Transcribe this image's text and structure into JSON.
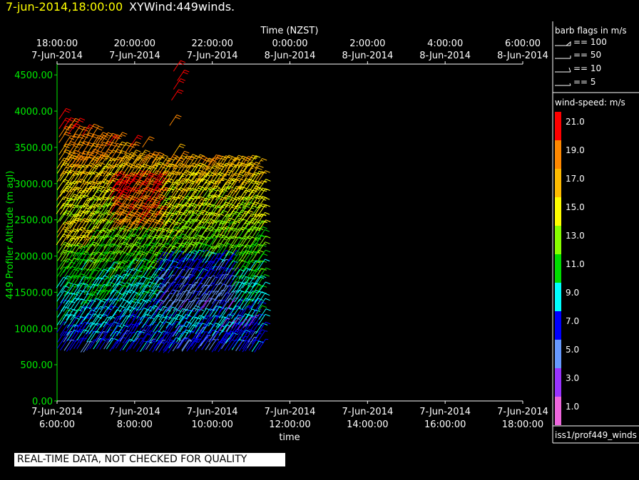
{
  "header": {
    "timestamp": "7-jun-2014,18:00:00",
    "title": "XYWind:449winds."
  },
  "banner": "REAL-TIME DATA, NOT CHECKED FOR QUALITY",
  "legend": {
    "barb_title": "barb flags in m/s",
    "barb_entries": [
      "== 100",
      "== 50",
      "== 10",
      "== 5"
    ],
    "speed_title": "wind-speed: m/s",
    "speed_bins": [
      {
        "label": "21.0",
        "color": "#ff0000"
      },
      {
        "label": "19.0",
        "color": "#ff8800"
      },
      {
        "label": "17.0",
        "color": "#ffbb00"
      },
      {
        "label": "15.0",
        "color": "#ffff00"
      },
      {
        "label": "13.0",
        "color": "#88ff00"
      },
      {
        "label": "11.0",
        "color": "#00dd00"
      },
      {
        "label": "9.0",
        "color": "#00ffff"
      },
      {
        "label": "7.0",
        "color": "#0000ff"
      },
      {
        "label": "5.0",
        "color": "#6699ff"
      },
      {
        "label": "3.0",
        "color": "#9933ff"
      },
      {
        "label": "1.0",
        "color": "#ee66dd"
      }
    ],
    "source": "iss1/prof449_winds"
  },
  "chart_data": {
    "type": "scatter",
    "subtype": "wind-barbs",
    "title": "",
    "xlabel": "time",
    "ylabel": "449 Profiler Altitude (m agl)",
    "top_axis_label": "Time (NZST)",
    "x_range_hours": [
      6,
      18
    ],
    "ylim": [
      0,
      4600
    ],
    "y_ticks": [
      "0.00",
      "500.00",
      "1000.00",
      "1500.00",
      "2000.00",
      "2500.00",
      "3000.00",
      "3500.00",
      "4000.00",
      "4500.00"
    ],
    "x_ticks_bottom": [
      {
        "date": "7-Jun-2014",
        "time": "6:00:00"
      },
      {
        "date": "7-Jun-2014",
        "time": "8:00:00"
      },
      {
        "date": "7-Jun-2014",
        "time": "10:00:00"
      },
      {
        "date": "7-Jun-2014",
        "time": "12:00:00"
      },
      {
        "date": "7-Jun-2014",
        "time": "14:00:00"
      },
      {
        "date": "7-Jun-2014",
        "time": "16:00:00"
      },
      {
        "date": "7-Jun-2014",
        "time": "18:00:00"
      }
    ],
    "x_ticks_top": [
      {
        "time": "18:00:00",
        "date": "7-Jun-2014"
      },
      {
        "time": "20:00:00",
        "date": "7-Jun-2014"
      },
      {
        "time": "22:00:00",
        "date": "7-Jun-2014"
      },
      {
        "time": "0:00:00",
        "date": "8-Jun-2014"
      },
      {
        "time": "2:00:00",
        "date": "8-Jun-2014"
      },
      {
        "time": "4:00:00",
        "date": "8-Jun-2014"
      },
      {
        "time": "6:00:00",
        "date": "8-Jun-2014"
      }
    ],
    "data_extent": {
      "time_start_hour": 6.0,
      "time_end_hour": 11.2,
      "alt_min_m": 650,
      "alt_max_m": 4600
    },
    "speed_profile_approx": [
      {
        "alt_m": 750,
        "speed_ms": 7
      },
      {
        "alt_m": 1000,
        "speed_ms": 8
      },
      {
        "alt_m": 1500,
        "speed_ms": 10
      },
      {
        "alt_m": 2000,
        "speed_ms": 12
      },
      {
        "alt_m": 2500,
        "speed_ms": 14
      },
      {
        "alt_m": 3000,
        "speed_ms": 16
      },
      {
        "alt_m": 3500,
        "speed_ms": 19
      },
      {
        "alt_m": 3900,
        "speed_ms": 21
      },
      {
        "alt_m": 4500,
        "speed_ms": 22
      }
    ]
  }
}
